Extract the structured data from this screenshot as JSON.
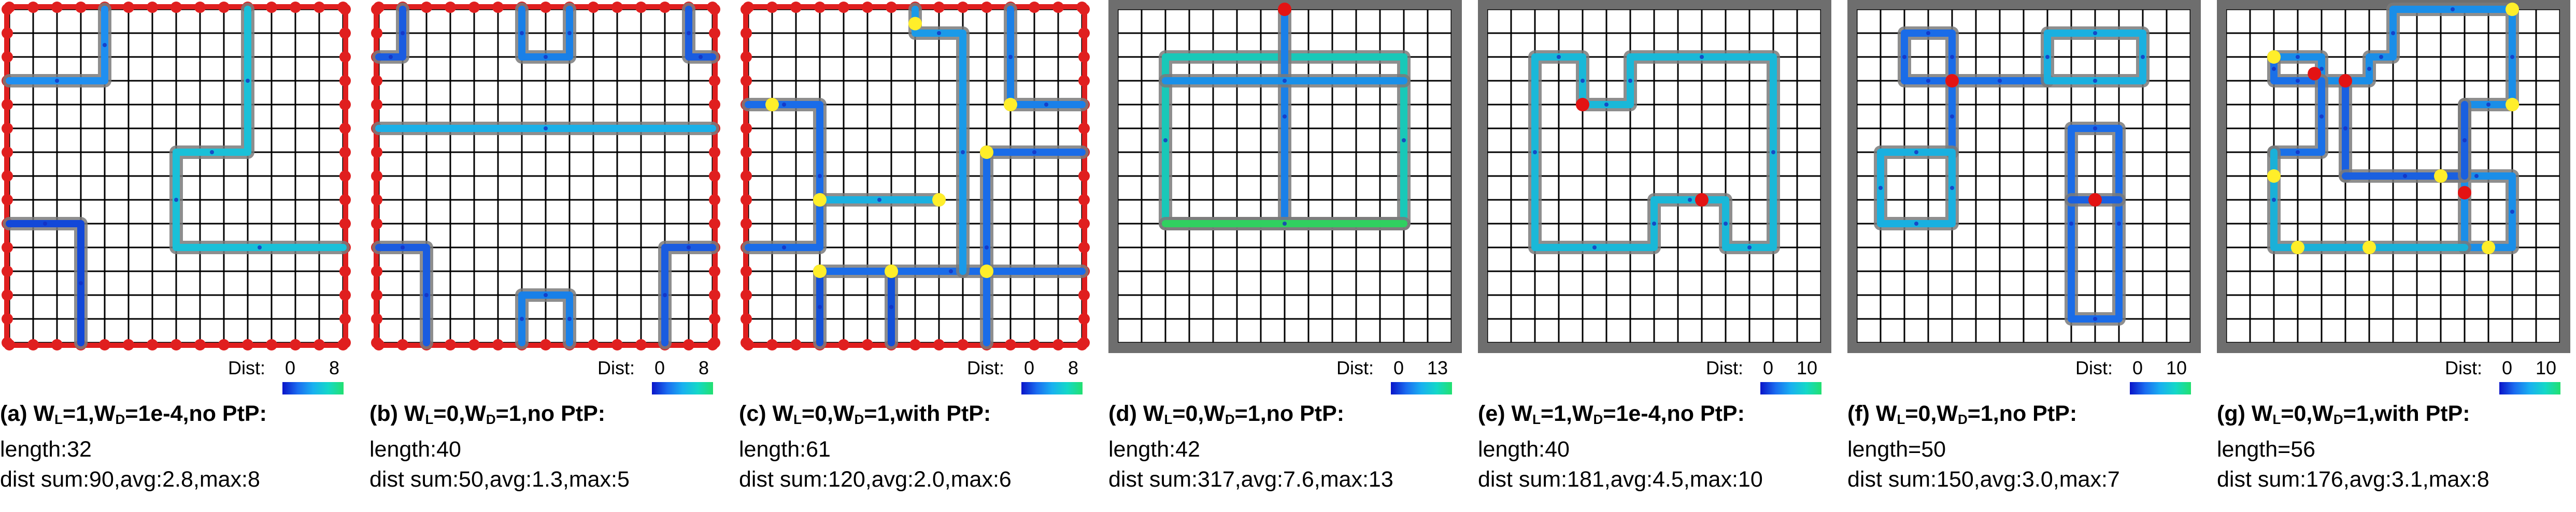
{
  "colors": {
    "grid_line": "#000000",
    "cell_fill": "#ffffff",
    "boundary_red": "#e01f1f",
    "boundary_gray": "#6e6e6e",
    "junction_red": "#e31313",
    "junction_yellow": "#ffee2a",
    "path_outline": "#7a7a7a",
    "dist_low": "#0a14c8",
    "dist_high": "#22e070"
  },
  "panels": [
    {
      "id": "a",
      "boundary": "red",
      "title_prefix": "(a) W",
      "sub1": "L",
      "mid1": "=1,W",
      "sub2": "D",
      "title_suffix": "=1e-4,no PtP:",
      "line2": "length:32",
      "line3": "dist sum:90,avg:2.8,max:8",
      "dist_label": "Dist:",
      "cb_min": "0",
      "cb_max": "8"
    },
    {
      "id": "b",
      "boundary": "red",
      "title_prefix": "(b) W",
      "sub1": "L",
      "mid1": "=0,W",
      "sub2": "D",
      "title_suffix": "=1,no PtP:",
      "line2": "length:40",
      "line3": "dist sum:50,avg:1.3,max:5",
      "dist_label": "Dist:",
      "cb_min": "0",
      "cb_max": "8"
    },
    {
      "id": "c",
      "boundary": "red",
      "title_prefix": "(c) W",
      "sub1": "L",
      "mid1": "=0,W",
      "sub2": "D",
      "title_suffix": "=1,with PtP:",
      "line2": "length:61",
      "line3": "dist sum:120,avg:2.0,max:6",
      "dist_label": "Dist:",
      "cb_min": "0",
      "cb_max": "8"
    },
    {
      "id": "d",
      "boundary": "gray",
      "title_prefix": "(d) W",
      "sub1": "L",
      "mid1": "=0,W",
      "sub2": "D",
      "title_suffix": "=1,no PtP:",
      "line2": "length:42",
      "line3": "dist sum:317,avg:7.6,max:13",
      "dist_label": "Dist:",
      "cb_min": "0",
      "cb_max": "13"
    },
    {
      "id": "e",
      "boundary": "gray",
      "title_prefix": "(e) W",
      "sub1": "L",
      "mid1": "=1,W",
      "sub2": "D",
      "title_suffix": "=1e-4,no PtP:",
      "line2": "length:40",
      "line3": "dist sum:181,avg:4.5,max:10",
      "dist_label": "Dist:",
      "cb_min": "0",
      "cb_max": "10"
    },
    {
      "id": "f",
      "boundary": "gray",
      "title_prefix": "(f) W",
      "sub1": "L",
      "mid1": "=0,W",
      "sub2": "D",
      "title_suffix": "=1,no PtP:",
      "line2": "length=50",
      "line3": "dist sum:150,avg:3.0,max:7",
      "dist_label": "Dist:",
      "cb_min": "0",
      "cb_max": "10"
    },
    {
      "id": "g",
      "boundary": "gray",
      "title_prefix": "(g) W",
      "sub1": "L",
      "mid1": "=0,W",
      "sub2": "D",
      "title_suffix": "=1,with PtP:",
      "line2": "length=56",
      "line3": "dist sum:176,avg:3.1,max:8",
      "dist_label": "Dist:",
      "cb_min": "0",
      "cb_max": "10"
    }
  ]
}
